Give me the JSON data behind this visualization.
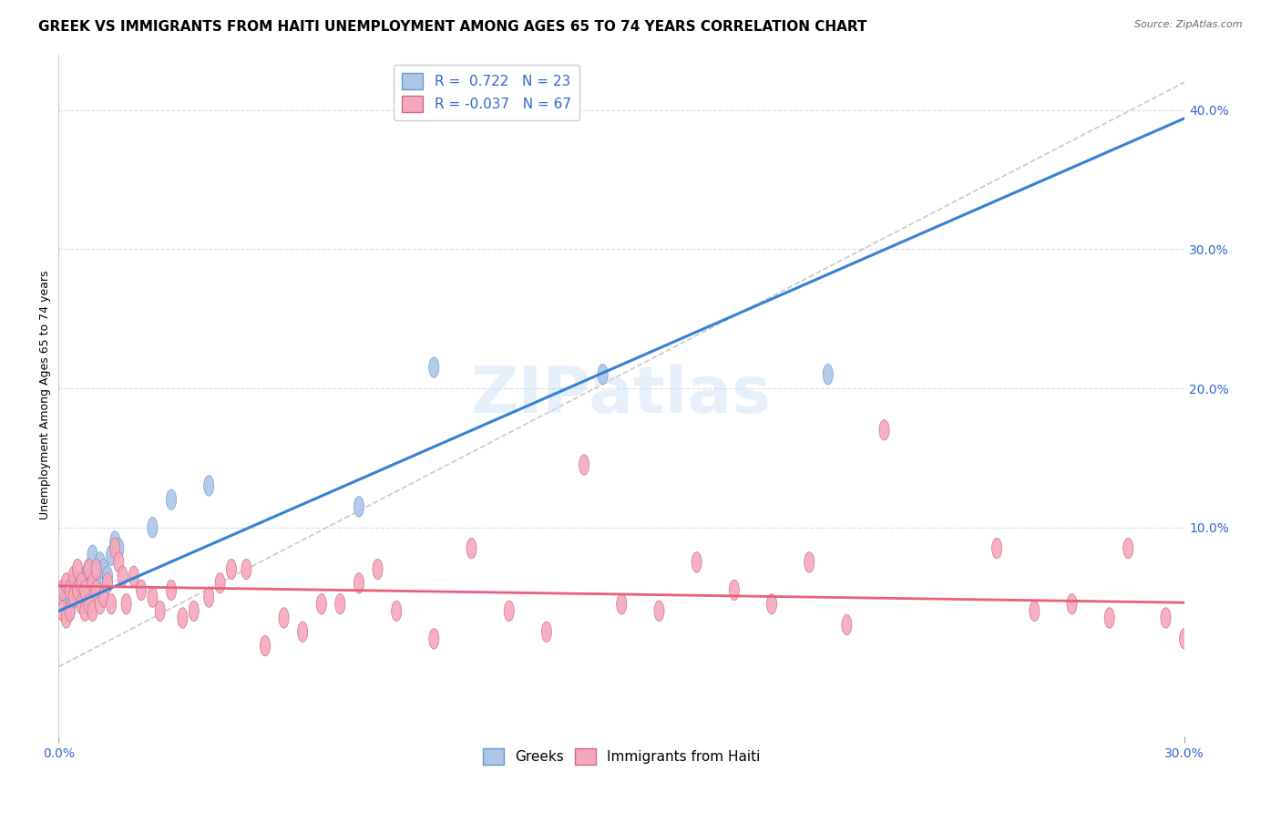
{
  "title": "GREEK VS IMMIGRANTS FROM HAITI UNEMPLOYMENT AMONG AGES 65 TO 74 YEARS CORRELATION CHART",
  "source": "Source: ZipAtlas.com",
  "ylabel": "Unemployment Among Ages 65 to 74 years",
  "xlim": [
    0.0,
    0.3
  ],
  "ylim": [
    -0.05,
    0.44
  ],
  "xtick_positions": [
    0.0,
    0.3
  ],
  "xtick_labels": [
    "0.0%",
    "30.0%"
  ],
  "yticks_right": [
    0.1,
    0.2,
    0.3,
    0.4
  ],
  "greek_R": 0.722,
  "greek_N": 23,
  "haiti_R": -0.037,
  "haiti_N": 67,
  "greek_color": "#adc6e8",
  "greek_line_color": "#3381d4",
  "haiti_color": "#f5a8bc",
  "haiti_line_color": "#e8607a",
  "background_color": "#ffffff",
  "grid_color": "#dddddd",
  "watermark": "ZIPatlas",
  "greek_scatter_x": [
    0.001,
    0.002,
    0.003,
    0.004,
    0.005,
    0.006,
    0.007,
    0.008,
    0.009,
    0.01,
    0.011,
    0.012,
    0.013,
    0.014,
    0.015,
    0.016,
    0.025,
    0.03,
    0.04,
    0.08,
    0.1,
    0.145,
    0.205
  ],
  "greek_scatter_y": [
    0.05,
    0.055,
    0.04,
    0.06,
    0.05,
    0.055,
    0.065,
    0.07,
    0.08,
    0.06,
    0.075,
    0.07,
    0.065,
    0.08,
    0.09,
    0.085,
    0.1,
    0.12,
    0.13,
    0.115,
    0.215,
    0.21,
    0.21
  ],
  "haiti_scatter_x": [
    0.001,
    0.001,
    0.002,
    0.002,
    0.003,
    0.003,
    0.004,
    0.004,
    0.005,
    0.005,
    0.006,
    0.006,
    0.007,
    0.007,
    0.008,
    0.008,
    0.009,
    0.009,
    0.01,
    0.01,
    0.011,
    0.012,
    0.013,
    0.014,
    0.015,
    0.016,
    0.017,
    0.018,
    0.02,
    0.022,
    0.025,
    0.027,
    0.03,
    0.033,
    0.036,
    0.04,
    0.043,
    0.046,
    0.05,
    0.055,
    0.06,
    0.065,
    0.07,
    0.075,
    0.08,
    0.085,
    0.09,
    0.1,
    0.11,
    0.12,
    0.13,
    0.14,
    0.15,
    0.16,
    0.17,
    0.18,
    0.19,
    0.2,
    0.21,
    0.22,
    0.25,
    0.26,
    0.27,
    0.28,
    0.285,
    0.295,
    0.3
  ],
  "haiti_scatter_y": [
    0.055,
    0.04,
    0.06,
    0.035,
    0.055,
    0.04,
    0.05,
    0.065,
    0.055,
    0.07,
    0.045,
    0.06,
    0.055,
    0.04,
    0.07,
    0.045,
    0.06,
    0.04,
    0.055,
    0.07,
    0.045,
    0.05,
    0.06,
    0.045,
    0.085,
    0.075,
    0.065,
    0.045,
    0.065,
    0.055,
    0.05,
    0.04,
    0.055,
    0.035,
    0.04,
    0.05,
    0.06,
    0.07,
    0.07,
    0.015,
    0.035,
    0.025,
    0.045,
    0.045,
    0.06,
    0.07,
    0.04,
    0.02,
    0.085,
    0.04,
    0.025,
    0.145,
    0.045,
    0.04,
    0.075,
    0.055,
    0.045,
    0.075,
    0.03,
    0.17,
    0.085,
    0.04,
    0.045,
    0.035,
    0.085,
    0.035,
    0.02
  ],
  "greek_line_slope": 1.18,
  "greek_line_intercept": 0.04,
  "haiti_line_slope": -0.04,
  "haiti_line_intercept": 0.058,
  "diag_color": "#bbbbbb",
  "title_fontsize": 11,
  "axis_label_fontsize": 9,
  "tick_fontsize": 10,
  "legend_fontsize": 11,
  "source_fontsize": 8
}
